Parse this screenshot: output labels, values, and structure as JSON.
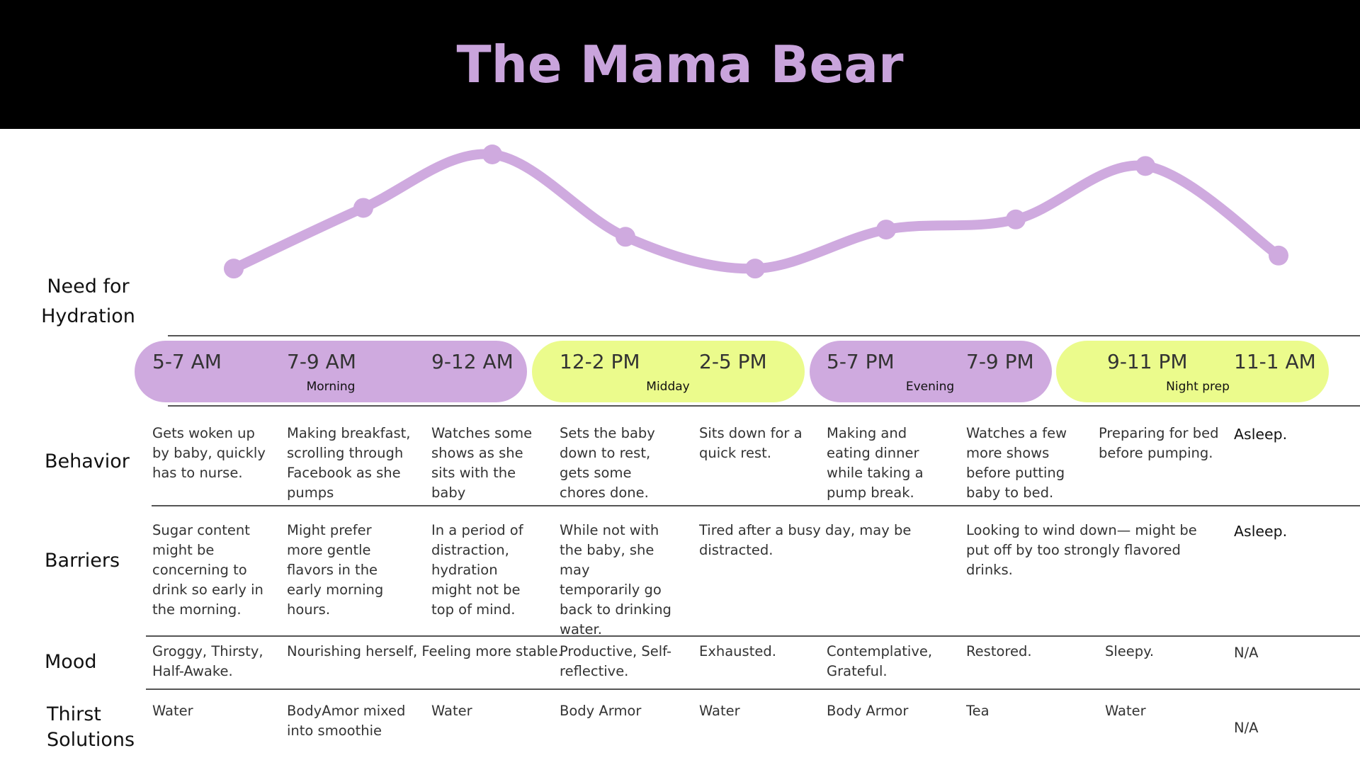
{
  "title": "The Mama Bear",
  "colors": {
    "accent": "#c9a4dc",
    "pill_purple": "#cfaadf",
    "pill_green": "#ebfb8c",
    "header_bg": "#000000"
  },
  "chart_data": {
    "type": "line",
    "ylabel": "Need for Hydration",
    "categories": [
      "5-7 AM",
      "7-9 AM",
      "9-12 AM",
      "12-2 PM",
      "2-5 PM",
      "5-7 PM",
      "7-9 PM",
      "9-11 PM",
      "11-1 AM"
    ],
    "values": [
      2.1,
      6.3,
      10.0,
      4.3,
      2.1,
      4.8,
      5.5,
      9.2,
      3.0
    ],
    "ylim": [
      0,
      10
    ]
  },
  "row_labels": {
    "hydration": [
      "Need for",
      "Hydration"
    ],
    "behavior": "Behavior",
    "barriers": "Barriers",
    "mood": "Mood",
    "thirst": [
      "Thirst",
      "Solutions"
    ]
  },
  "times": [
    "5-7 AM",
    "7-9 AM",
    "9-12 AM",
    "12-2 PM",
    "2-5 PM",
    "5-7 PM",
    "7-9 PM",
    "9-11 PM",
    "11-1 AM"
  ],
  "phases": [
    "Morning",
    "Midday",
    "Evening",
    "Night prep"
  ],
  "behavior": [
    "Gets woken up by baby, quickly has to nurse.",
    "Making breakfast, scrolling through Facebook as she pumps",
    "Watches some shows as she sits with the baby",
    "Sets the baby down to rest, gets some chores done.",
    "Sits down for a quick rest.",
    "Making and eating dinner while taking a pump break.",
    "Watches a few more shows before putting baby to bed.",
    "Preparing for bed before pumping.",
    "Asleep."
  ],
  "barriers": [
    "Sugar content might be concerning to drink so early in the morning.",
    "Might prefer more gentle flavors in the early morning hours.",
    "In a period of distraction, hydration might not be top of mind.",
    "While not with the baby, she may temporarily go back to drinking water.",
    "Tired after a busy day, may be distracted.",
    "Looking to wind down— might be put off by too strongly flavored drinks.",
    "Asleep."
  ],
  "mood": [
    "Groggy, Thirsty, Half-Awake.",
    "Nourishing herself, Feeling more stable.",
    "Productive, Self-reflective.",
    "Exhausted.",
    "Contemplative, Grateful.",
    "Restored.",
    "Sleepy.",
    "N/A"
  ],
  "thirst": [
    "Water",
    "BodyAmor mixed into smoothie",
    "Water",
    "Body Armor",
    "Water",
    "Body Armor",
    "Tea",
    "Water",
    "N/A"
  ]
}
